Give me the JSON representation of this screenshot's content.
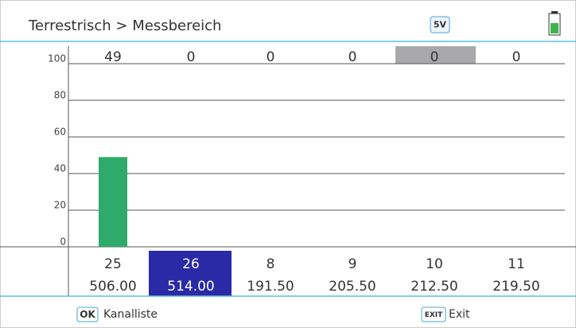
{
  "header": {
    "title": "Terrestrisch > Messbereich",
    "badge": "5V"
  },
  "chart_data": {
    "type": "bar",
    "categories": [
      "25",
      "26",
      "8",
      "9",
      "10",
      "11"
    ],
    "frequencies": [
      "506.00",
      "514.00",
      "191.50",
      "205.50",
      "212.50",
      "219.50"
    ],
    "values": [
      49,
      0,
      0,
      0,
      0,
      0
    ],
    "color": "#2eaa6a",
    "ylim": [
      0,
      100
    ],
    "yticks": [
      0,
      20,
      40,
      60,
      80,
      100
    ],
    "grid": true
  },
  "footer": {
    "ok_key": "OK",
    "ok_label": "Kanalliste",
    "exit_key": "EXIT",
    "exit_label": "Exit"
  }
}
